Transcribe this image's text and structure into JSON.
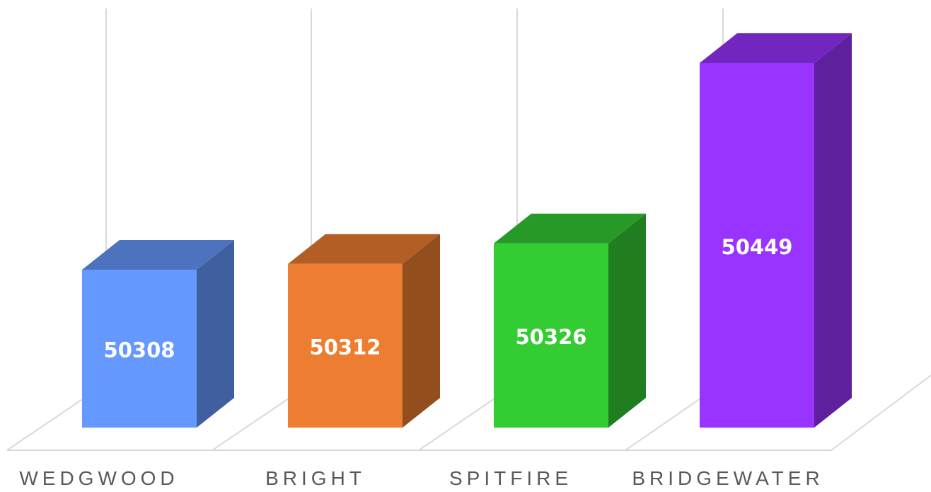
{
  "chart_data": {
    "type": "bar",
    "style": "3d-column",
    "categories": [
      "WEDGWOOD",
      "BRIGHT",
      "SPITFIRE",
      "BRIDGEWATER"
    ],
    "values": [
      50308,
      50312,
      50326,
      50449
    ],
    "data_labels": [
      "50308",
      "50312",
      "50326",
      "50449"
    ],
    "colors": [
      "#6699FF",
      "#ED7D31",
      "#33CC33",
      "#9933FF"
    ],
    "gridline_color": "#D9D9D9",
    "axis_label_color": "#595959",
    "grid": true,
    "legend": "none",
    "title": "",
    "xlabel": "",
    "ylabel": ""
  }
}
